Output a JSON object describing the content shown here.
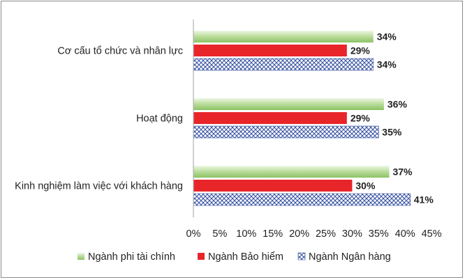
{
  "chart_data": {
    "type": "bar",
    "orientation": "horizontal",
    "categories": [
      "Cơ cấu tổ chức và nhân lực",
      "Hoạt động",
      "Kinh nghiệm làm việc với khách hàng"
    ],
    "series": [
      {
        "name": "Ngành phi tài chính",
        "values": [
          34,
          36,
          37
        ],
        "labels": [
          "34%",
          "36%",
          "37%"
        ],
        "color": "#a8d08d",
        "style": "gradient-green"
      },
      {
        "name": "Ngành Bảo hiểm",
        "values": [
          29,
          29,
          30
        ],
        "labels": [
          "29%",
          "29%",
          "30%"
        ],
        "color": "#e8262a",
        "style": "solid-red"
      },
      {
        "name": "Ngành Ngân hàng",
        "values": [
          34,
          35,
          41
        ],
        "labels": [
          "34%",
          "35%",
          "41%"
        ],
        "color": "#3a55a4",
        "style": "crosshatch-blue"
      }
    ],
    "xlim": [
      0,
      45
    ],
    "xticks": [
      0,
      5,
      10,
      15,
      20,
      25,
      30,
      35,
      40,
      45
    ],
    "xtick_labels": [
      "0%",
      "5%",
      "10%",
      "15%",
      "20%",
      "25%",
      "30%",
      "35%",
      "40%",
      "45%"
    ],
    "grid": false,
    "legend_position": "bottom"
  }
}
